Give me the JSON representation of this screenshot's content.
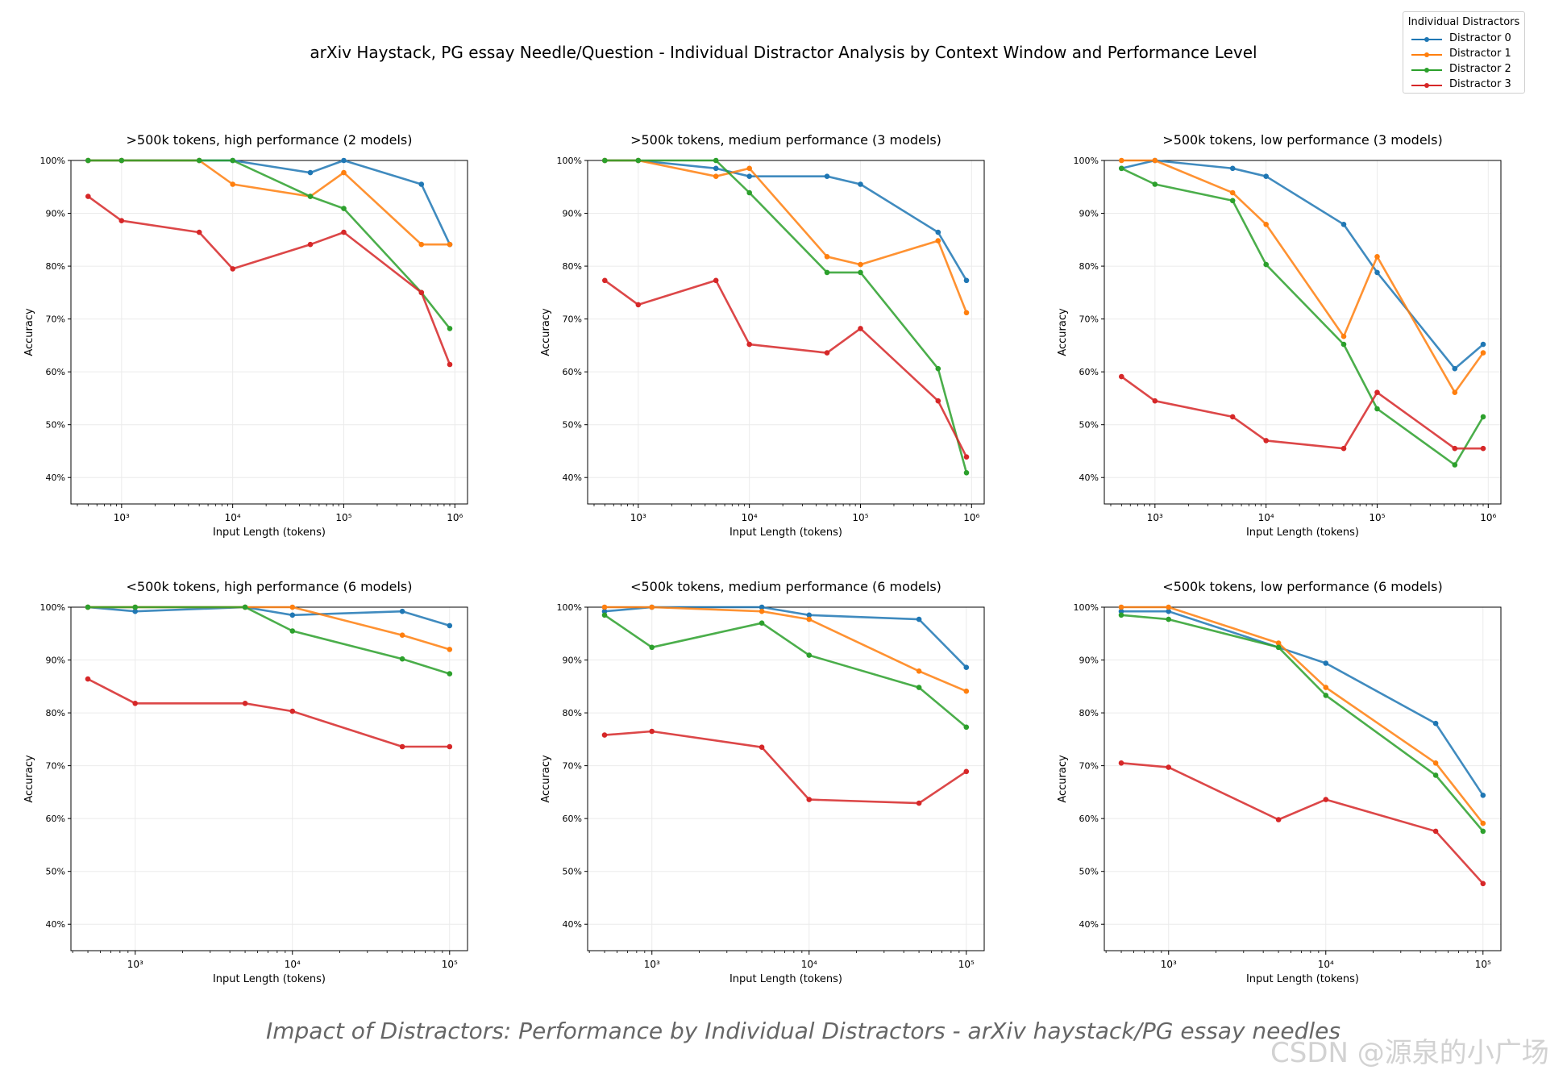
{
  "title": "arXiv Haystack, PG essay Needle/Question - Individual Distractor Analysis by Context Window and Performance Level",
  "legend": {
    "title": "Individual Distractors",
    "items": [
      {
        "label": "Distractor 0",
        "color": "#1f77b4"
      },
      {
        "label": "Distractor 1",
        "color": "#ff7f0e"
      },
      {
        "label": "Distractor 2",
        "color": "#2ca02c"
      },
      {
        "label": "Distractor 3",
        "color": "#d62728"
      }
    ]
  },
  "caption": "Impact of Distractors: Performance by Individual Distractors - arXiv haystack/PG essay needles",
  "watermark": "CSDN @源泉的小广场",
  "chart_data": [
    {
      "type": "line",
      "title": ">500k tokens, high performance (2 models)",
      "xlabel": "Input Length (tokens)",
      "ylabel": "Accuracy",
      "xscale": "log",
      "xlim": [
        350,
        1300000
      ],
      "ylim": [
        35,
        100
      ],
      "yticks": [
        "40%",
        "50%",
        "60%",
        "70%",
        "80%",
        "90%",
        "100%"
      ],
      "xticks": [
        "10³",
        "10⁴",
        "10⁵",
        "10⁶"
      ],
      "x": [
        500,
        1000,
        5000,
        10000,
        50000,
        100000,
        500000,
        900000
      ],
      "series": [
        {
          "name": "Distractor 0",
          "values": [
            100,
            100,
            100,
            100,
            97.7,
            100,
            95.5,
            84.1
          ]
        },
        {
          "name": "Distractor 1",
          "values": [
            100,
            100,
            100,
            95.5,
            93.2,
            97.7,
            84.1,
            84.1
          ]
        },
        {
          "name": "Distractor 2",
          "values": [
            100,
            100,
            100,
            100,
            93.2,
            90.9,
            75.0,
            68.2
          ]
        },
        {
          "name": "Distractor 3",
          "values": [
            93.2,
            88.6,
            86.4,
            79.5,
            84.1,
            86.4,
            75.0,
            61.4
          ]
        }
      ]
    },
    {
      "type": "line",
      "title": ">500k tokens, medium performance (3 models)",
      "xlabel": "Input Length (tokens)",
      "ylabel": "Accuracy",
      "xscale": "log",
      "xlim": [
        350,
        1300000
      ],
      "ylim": [
        35,
        100
      ],
      "yticks": [
        "40%",
        "50%",
        "60%",
        "70%",
        "80%",
        "90%",
        "100%"
      ],
      "xticks": [
        "10³",
        "10⁴",
        "10⁵",
        "10⁶"
      ],
      "x": [
        500,
        1000,
        5000,
        10000,
        50000,
        100000,
        500000,
        900000
      ],
      "series": [
        {
          "name": "Distractor 0",
          "values": [
            100,
            100,
            98.5,
            97.0,
            97.0,
            95.5,
            86.4,
            77.3
          ]
        },
        {
          "name": "Distractor 1",
          "values": [
            100,
            100,
            97.0,
            98.5,
            81.8,
            80.3,
            84.8,
            71.2
          ]
        },
        {
          "name": "Distractor 2",
          "values": [
            100,
            100,
            100,
            93.9,
            78.8,
            78.8,
            60.6,
            40.9
          ]
        },
        {
          "name": "Distractor 3",
          "values": [
            77.3,
            72.7,
            77.3,
            65.2,
            63.6,
            68.2,
            54.5,
            43.9
          ]
        }
      ]
    },
    {
      "type": "line",
      "title": ">500k tokens, low performance (3 models)",
      "xlabel": "Input Length (tokens)",
      "ylabel": "Accuracy",
      "xscale": "log",
      "xlim": [
        350,
        1300000
      ],
      "ylim": [
        35,
        100
      ],
      "yticks": [
        "40%",
        "50%",
        "60%",
        "70%",
        "80%",
        "90%",
        "100%"
      ],
      "xticks": [
        "10³",
        "10⁴",
        "10⁵",
        "10⁶"
      ],
      "x": [
        500,
        1000,
        5000,
        10000,
        50000,
        100000,
        500000,
        900000
      ],
      "series": [
        {
          "name": "Distractor 0",
          "values": [
            98.5,
            100,
            98.5,
            97.0,
            87.9,
            78.8,
            60.6,
            65.2
          ]
        },
        {
          "name": "Distractor 1",
          "values": [
            100,
            100,
            93.9,
            87.9,
            66.7,
            81.8,
            56.1,
            63.6
          ]
        },
        {
          "name": "Distractor 2",
          "values": [
            98.5,
            95.5,
            92.4,
            80.3,
            65.2,
            53.0,
            42.4,
            51.5
          ]
        },
        {
          "name": "Distractor 3",
          "values": [
            59.1,
            54.5,
            51.5,
            47.0,
            45.5,
            56.1,
            45.5,
            45.5
          ]
        }
      ]
    },
    {
      "type": "line",
      "title": "<500k tokens, high performance (6 models)",
      "xlabel": "Input Length (tokens)",
      "ylabel": "Accuracy",
      "xscale": "log",
      "xlim": [
        390,
        130000
      ],
      "ylim": [
        35,
        100
      ],
      "yticks": [
        "40%",
        "50%",
        "60%",
        "70%",
        "80%",
        "90%",
        "100%"
      ],
      "xticks": [
        "10³",
        "10⁴",
        "10⁵"
      ],
      "x": [
        500,
        1000,
        5000,
        10000,
        50000,
        100000
      ],
      "series": [
        {
          "name": "Distractor 0",
          "values": [
            100,
            99.2,
            100,
            98.5,
            99.2,
            96.5
          ]
        },
        {
          "name": "Distractor 1",
          "values": [
            100,
            100,
            100,
            100,
            94.7,
            92.0
          ]
        },
        {
          "name": "Distractor 2",
          "values": [
            100,
            100,
            100,
            95.5,
            90.2,
            87.4
          ]
        },
        {
          "name": "Distractor 3",
          "values": [
            86.4,
            81.8,
            81.8,
            80.3,
            73.6,
            73.6
          ]
        }
      ]
    },
    {
      "type": "line",
      "title": "<500k tokens, medium performance (6 models)",
      "xlabel": "Input Length (tokens)",
      "ylabel": "Accuracy",
      "xscale": "log",
      "xlim": [
        390,
        130000
      ],
      "ylim": [
        35,
        100
      ],
      "yticks": [
        "40%",
        "50%",
        "60%",
        "70%",
        "80%",
        "90%",
        "100%"
      ],
      "xticks": [
        "10³",
        "10⁴",
        "10⁵"
      ],
      "x": [
        500,
        1000,
        5000,
        10000,
        50000,
        100000
      ],
      "series": [
        {
          "name": "Distractor 0",
          "values": [
            99.2,
            100,
            100,
            98.5,
            97.7,
            88.6
          ]
        },
        {
          "name": "Distractor 1",
          "values": [
            100,
            100,
            99.2,
            97.7,
            87.9,
            84.1
          ]
        },
        {
          "name": "Distractor 2",
          "values": [
            98.5,
            92.4,
            97.0,
            90.9,
            84.8,
            77.3
          ]
        },
        {
          "name": "Distractor 3",
          "values": [
            75.8,
            76.5,
            73.5,
            63.6,
            62.9,
            68.9
          ]
        }
      ]
    },
    {
      "type": "line",
      "title": "<500k tokens, low performance (6 models)",
      "xlabel": "Input Length (tokens)",
      "ylabel": "Accuracy",
      "xscale": "log",
      "xlim": [
        390,
        130000
      ],
      "ylim": [
        35,
        100
      ],
      "yticks": [
        "40%",
        "50%",
        "60%",
        "70%",
        "80%",
        "90%",
        "100%"
      ],
      "xticks": [
        "10³",
        "10⁴",
        "10⁵"
      ],
      "x": [
        500,
        1000,
        5000,
        10000,
        50000,
        100000
      ],
      "series": [
        {
          "name": "Distractor 0",
          "values": [
            99.2,
            99.2,
            92.4,
            89.4,
            78.0,
            64.4
          ]
        },
        {
          "name": "Distractor 1",
          "values": [
            100,
            100,
            93.2,
            84.8,
            70.5,
            59.1
          ]
        },
        {
          "name": "Distractor 2",
          "values": [
            98.5,
            97.7,
            92.4,
            83.3,
            68.2,
            57.6
          ]
        },
        {
          "name": "Distractor 3",
          "values": [
            70.5,
            69.7,
            59.8,
            63.6,
            57.6,
            47.7
          ]
        }
      ]
    }
  ]
}
